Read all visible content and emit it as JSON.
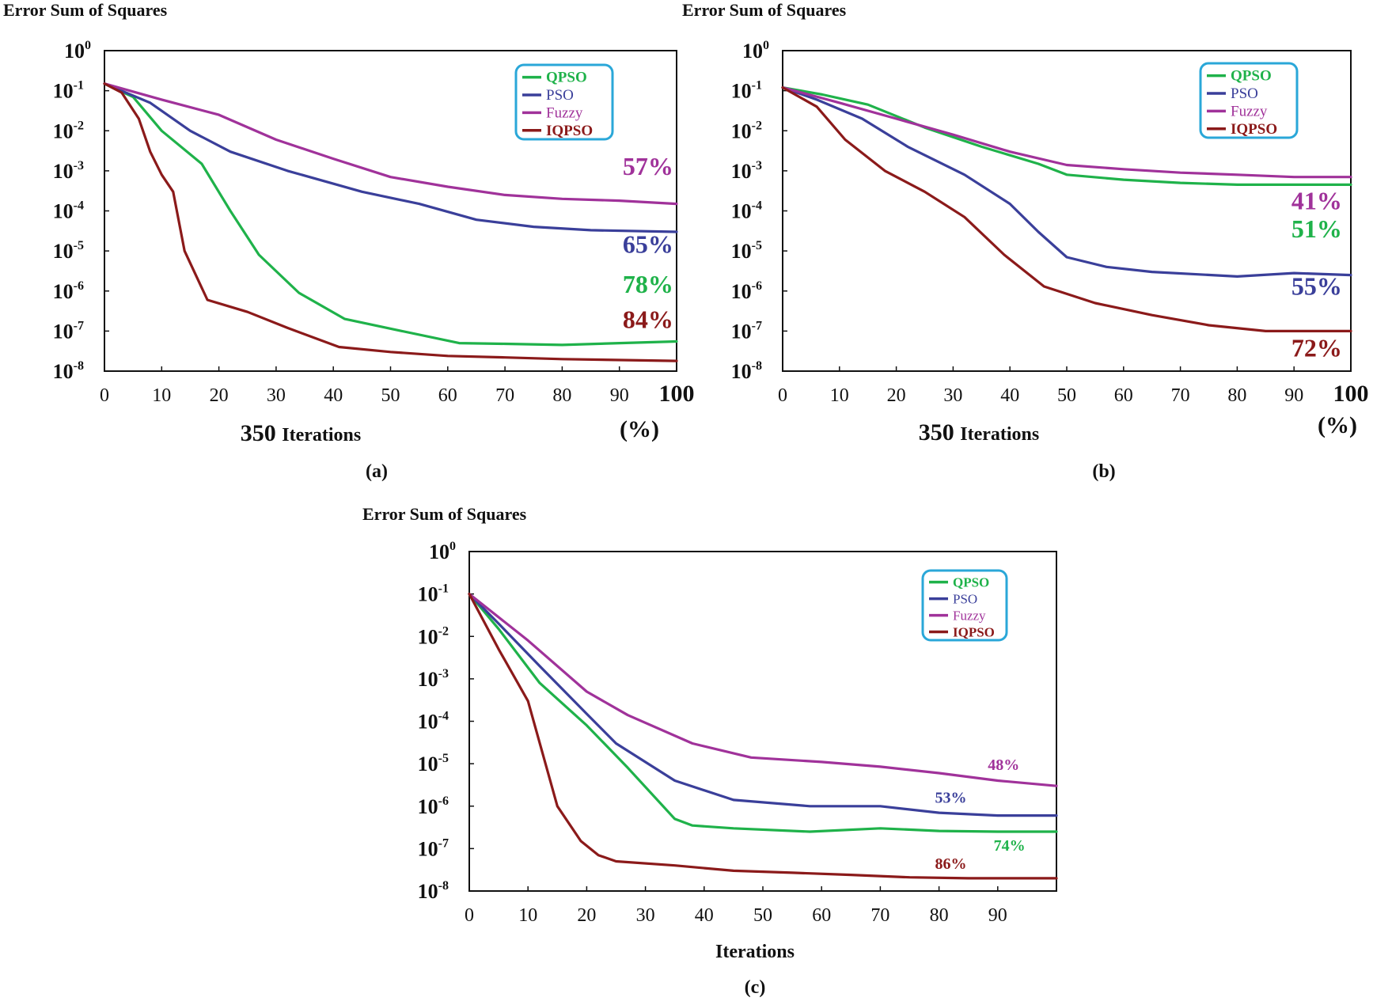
{
  "figure": {
    "panels": [
      {
        "id": "a",
        "caption": "(a)",
        "ylabel": "Error Sum of Squares",
        "xlabel": "Iterations",
        "xlabel_prefix": "350",
        "x_end_unit": "(%)"
      },
      {
        "id": "b",
        "caption": "(b)",
        "ylabel": "Error Sum of Squares",
        "xlabel": "Iterations",
        "xlabel_prefix": "350",
        "x_end_unit": "(%)"
      },
      {
        "id": "c",
        "caption": "(c)",
        "ylabel": "Error Sum of Squares",
        "xlabel": "Iterations",
        "xlabel_prefix": "",
        "x_end_unit": ""
      }
    ]
  },
  "colors": {
    "QPSO": "#1fb24a",
    "PSO": "#3a3f9a",
    "Fuzzy": "#a0329a",
    "IQPSO": "#8b1a1a",
    "legend_border": "#2aa7d8"
  },
  "chart_data": [
    {
      "type": "line",
      "panel": "a",
      "ylabel": "Error Sum of Squares",
      "xlabel": "Iterations",
      "yscale": "log",
      "xlim": [
        0,
        100
      ],
      "ylim_exp": [
        -8,
        0
      ],
      "xticks": [
        "0",
        "10",
        "20",
        "30",
        "40",
        "50",
        "60",
        "70",
        "80",
        "90",
        "100"
      ],
      "yticks": [
        {
          "base": "10",
          "exp": "0"
        },
        {
          "base": "10",
          "exp": "-1"
        },
        {
          "base": "10",
          "exp": "-2"
        },
        {
          "base": "10",
          "exp": "-3"
        },
        {
          "base": "10",
          "exp": "-4"
        },
        {
          "base": "10",
          "exp": "-5"
        },
        {
          "base": "10",
          "exp": "-6"
        },
        {
          "base": "10",
          "exp": "-7"
        },
        {
          "base": "10",
          "exp": "-8"
        }
      ],
      "legend_position": "top-right",
      "series": [
        {
          "name": "QPSO",
          "x": [
            0,
            5,
            10,
            17,
            22,
            27,
            34,
            42,
            52,
            62,
            70,
            80,
            90,
            100
          ],
          "y": [
            0.15,
            0.07,
            0.01,
            0.0015,
            0.0001,
            8e-06,
            9e-07,
            2e-07,
            1e-07,
            5e-08,
            4.8e-08,
            4.5e-08,
            5e-08,
            5.5e-08
          ]
        },
        {
          "name": "PSO",
          "x": [
            0,
            8,
            15,
            22,
            32,
            45,
            55,
            65,
            75,
            85,
            100
          ],
          "y": [
            0.15,
            0.05,
            0.01,
            0.003,
            0.001,
            0.0003,
            0.00015,
            6e-05,
            4e-05,
            3.3e-05,
            3e-05
          ]
        },
        {
          "name": "Fuzzy",
          "x": [
            0,
            10,
            20,
            30,
            40,
            50,
            60,
            70,
            80,
            90,
            100
          ],
          "y": [
            0.15,
            0.06,
            0.025,
            0.006,
            0.002,
            0.0007,
            0.0004,
            0.00025,
            0.0002,
            0.00018,
            0.00015
          ]
        },
        {
          "name": "IQPSO",
          "x": [
            0,
            3,
            6,
            8,
            10,
            12,
            14,
            18,
            25,
            32,
            41,
            50,
            60,
            70,
            80,
            100
          ],
          "y": [
            0.15,
            0.09,
            0.02,
            0.003,
            0.0008,
            0.0003,
            1e-05,
            6e-07,
            3e-07,
            1.2e-07,
            4e-08,
            3e-08,
            2.4e-08,
            2.2e-08,
            2e-08,
            1.8e-08
          ]
        }
      ],
      "annotations": [
        {
          "text": "57%",
          "series": "Fuzzy",
          "x": 95,
          "y": 0.0008
        },
        {
          "text": "65%",
          "series": "PSO",
          "x": 95,
          "y": 9e-06
        },
        {
          "text": "78%",
          "series": "QPSO",
          "x": 95,
          "y": 9e-07
        },
        {
          "text": "84%",
          "series": "IQPSO",
          "x": 95,
          "y": 1.2e-07
        }
      ]
    },
    {
      "type": "line",
      "panel": "b",
      "ylabel": "Error Sum of Squares",
      "xlabel": "Iterations",
      "yscale": "log",
      "xlim": [
        0,
        100
      ],
      "ylim_exp": [
        -8,
        0
      ],
      "xticks": [
        "0",
        "10",
        "20",
        "30",
        "40",
        "50",
        "60",
        "70",
        "80",
        "90",
        "100"
      ],
      "yticks": [
        {
          "base": "10",
          "exp": "0"
        },
        {
          "base": "10",
          "exp": "-1"
        },
        {
          "base": "10",
          "exp": "-2"
        },
        {
          "base": "10",
          "exp": "-3"
        },
        {
          "base": "10",
          "exp": "-4"
        },
        {
          "base": "10",
          "exp": "-5"
        },
        {
          "base": "10",
          "exp": "-6"
        },
        {
          "base": "10",
          "exp": "-7"
        },
        {
          "base": "10",
          "exp": "-8"
        }
      ],
      "legend_position": "top-right",
      "series": [
        {
          "name": "QPSO",
          "x": [
            0,
            7,
            15,
            25,
            35,
            45,
            50,
            60,
            70,
            80,
            90,
            100
          ],
          "y": [
            0.12,
            0.08,
            0.045,
            0.012,
            0.004,
            0.0015,
            0.0008,
            0.0006,
            0.0005,
            0.00045,
            0.00045,
            0.00045
          ]
        },
        {
          "name": "PSO",
          "x": [
            0,
            6,
            14,
            22,
            32,
            40,
            45,
            50,
            57,
            65,
            80,
            90,
            100
          ],
          "y": [
            0.12,
            0.06,
            0.02,
            0.004,
            0.0008,
            0.00015,
            3e-05,
            7e-06,
            4e-06,
            3e-06,
            2.3e-06,
            2.8e-06,
            2.5e-06
          ]
        },
        {
          "name": "Fuzzy",
          "x": [
            0,
            10,
            20,
            30,
            40,
            50,
            60,
            70,
            80,
            90,
            100
          ],
          "y": [
            0.12,
            0.05,
            0.02,
            0.008,
            0.003,
            0.0014,
            0.0011,
            0.0009,
            0.0008,
            0.0007,
            0.0007
          ]
        },
        {
          "name": "IQPSO",
          "x": [
            0,
            6,
            11,
            18,
            25,
            32,
            39,
            46,
            55,
            65,
            75,
            85,
            100
          ],
          "y": [
            0.12,
            0.04,
            0.006,
            0.001,
            0.0003,
            7e-05,
            8e-06,
            1.3e-06,
            5e-07,
            2.5e-07,
            1.4e-07,
            1e-07,
            1e-07
          ]
        }
      ],
      "annotations": [
        {
          "text": "41%",
          "series": "Fuzzy",
          "x": 94,
          "y": 0.00011
        },
        {
          "text": "51%",
          "series": "QPSO",
          "x": 94,
          "y": 2.2e-05
        },
        {
          "text": "55%",
          "series": "PSO",
          "x": 94,
          "y": 8e-07
        },
        {
          "text": "72%",
          "series": "IQPSO",
          "x": 94,
          "y": 2.3e-08
        }
      ]
    },
    {
      "type": "line",
      "panel": "c",
      "ylabel": "Error Sum of Squares",
      "xlabel": "Iterations",
      "yscale": "log",
      "xlim": [
        0,
        100
      ],
      "ylim_exp": [
        -8,
        0
      ],
      "xticks": [
        "0",
        "10",
        "20",
        "30",
        "40",
        "50",
        "60",
        "70",
        "80",
        "90"
      ],
      "yticks": [
        {
          "base": "10",
          "exp": "0"
        },
        {
          "base": "10",
          "exp": "-1"
        },
        {
          "base": "10",
          "exp": "-2"
        },
        {
          "base": "10",
          "exp": "-3"
        },
        {
          "base": "10",
          "exp": "-4"
        },
        {
          "base": "10",
          "exp": "-5"
        },
        {
          "base": "10",
          "exp": "-6"
        },
        {
          "base": "10",
          "exp": "-7"
        },
        {
          "base": "10",
          "exp": "-8"
        }
      ],
      "legend_position": "top-right",
      "series": [
        {
          "name": "QPSO",
          "x": [
            0,
            5,
            12,
            20,
            27,
            35,
            38,
            45,
            58,
            70,
            80,
            90,
            100
          ],
          "y": [
            0.1,
            0.015,
            0.0008,
            8e-05,
            8e-06,
            5e-07,
            3.5e-07,
            3e-07,
            2.5e-07,
            3e-07,
            2.6e-07,
            2.5e-07,
            2.5e-07
          ]
        },
        {
          "name": "PSO",
          "x": [
            0,
            5,
            12,
            20,
            25,
            35,
            45,
            58,
            70,
            80,
            90,
            100
          ],
          "y": [
            0.1,
            0.02,
            0.002,
            0.00015,
            3e-05,
            4e-06,
            1.4e-06,
            1e-06,
            1e-06,
            7e-07,
            6e-07,
            6e-07
          ]
        },
        {
          "name": "Fuzzy",
          "x": [
            0,
            10,
            20,
            27,
            38,
            48,
            60,
            70,
            80,
            90,
            100
          ],
          "y": [
            0.1,
            0.008,
            0.0005,
            0.00014,
            3e-05,
            1.4e-05,
            1.1e-05,
            8.5e-06,
            6e-06,
            4e-06,
            3e-06
          ]
        },
        {
          "name": "IQPSO",
          "x": [
            0,
            5,
            10,
            15,
            19,
            22,
            25,
            35,
            45,
            55,
            65,
            75,
            85,
            100
          ],
          "y": [
            0.1,
            0.005,
            0.0003,
            1e-06,
            1.5e-07,
            7e-08,
            5e-08,
            4e-08,
            3e-08,
            2.7e-08,
            2.4e-08,
            2.1e-08,
            2e-08,
            2e-08
          ]
        }
      ],
      "annotations": [
        {
          "text": "48%",
          "series": "Fuzzy",
          "x": 91,
          "y": 7.2e-06
        },
        {
          "text": "53%",
          "series": "PSO",
          "x": 82,
          "y": 1.2e-06
        },
        {
          "text": "74%",
          "series": "QPSO",
          "x": 92,
          "y": 9e-08
        },
        {
          "text": "86%",
          "series": "IQPSO",
          "x": 82,
          "y": 3.3e-08
        }
      ]
    }
  ]
}
